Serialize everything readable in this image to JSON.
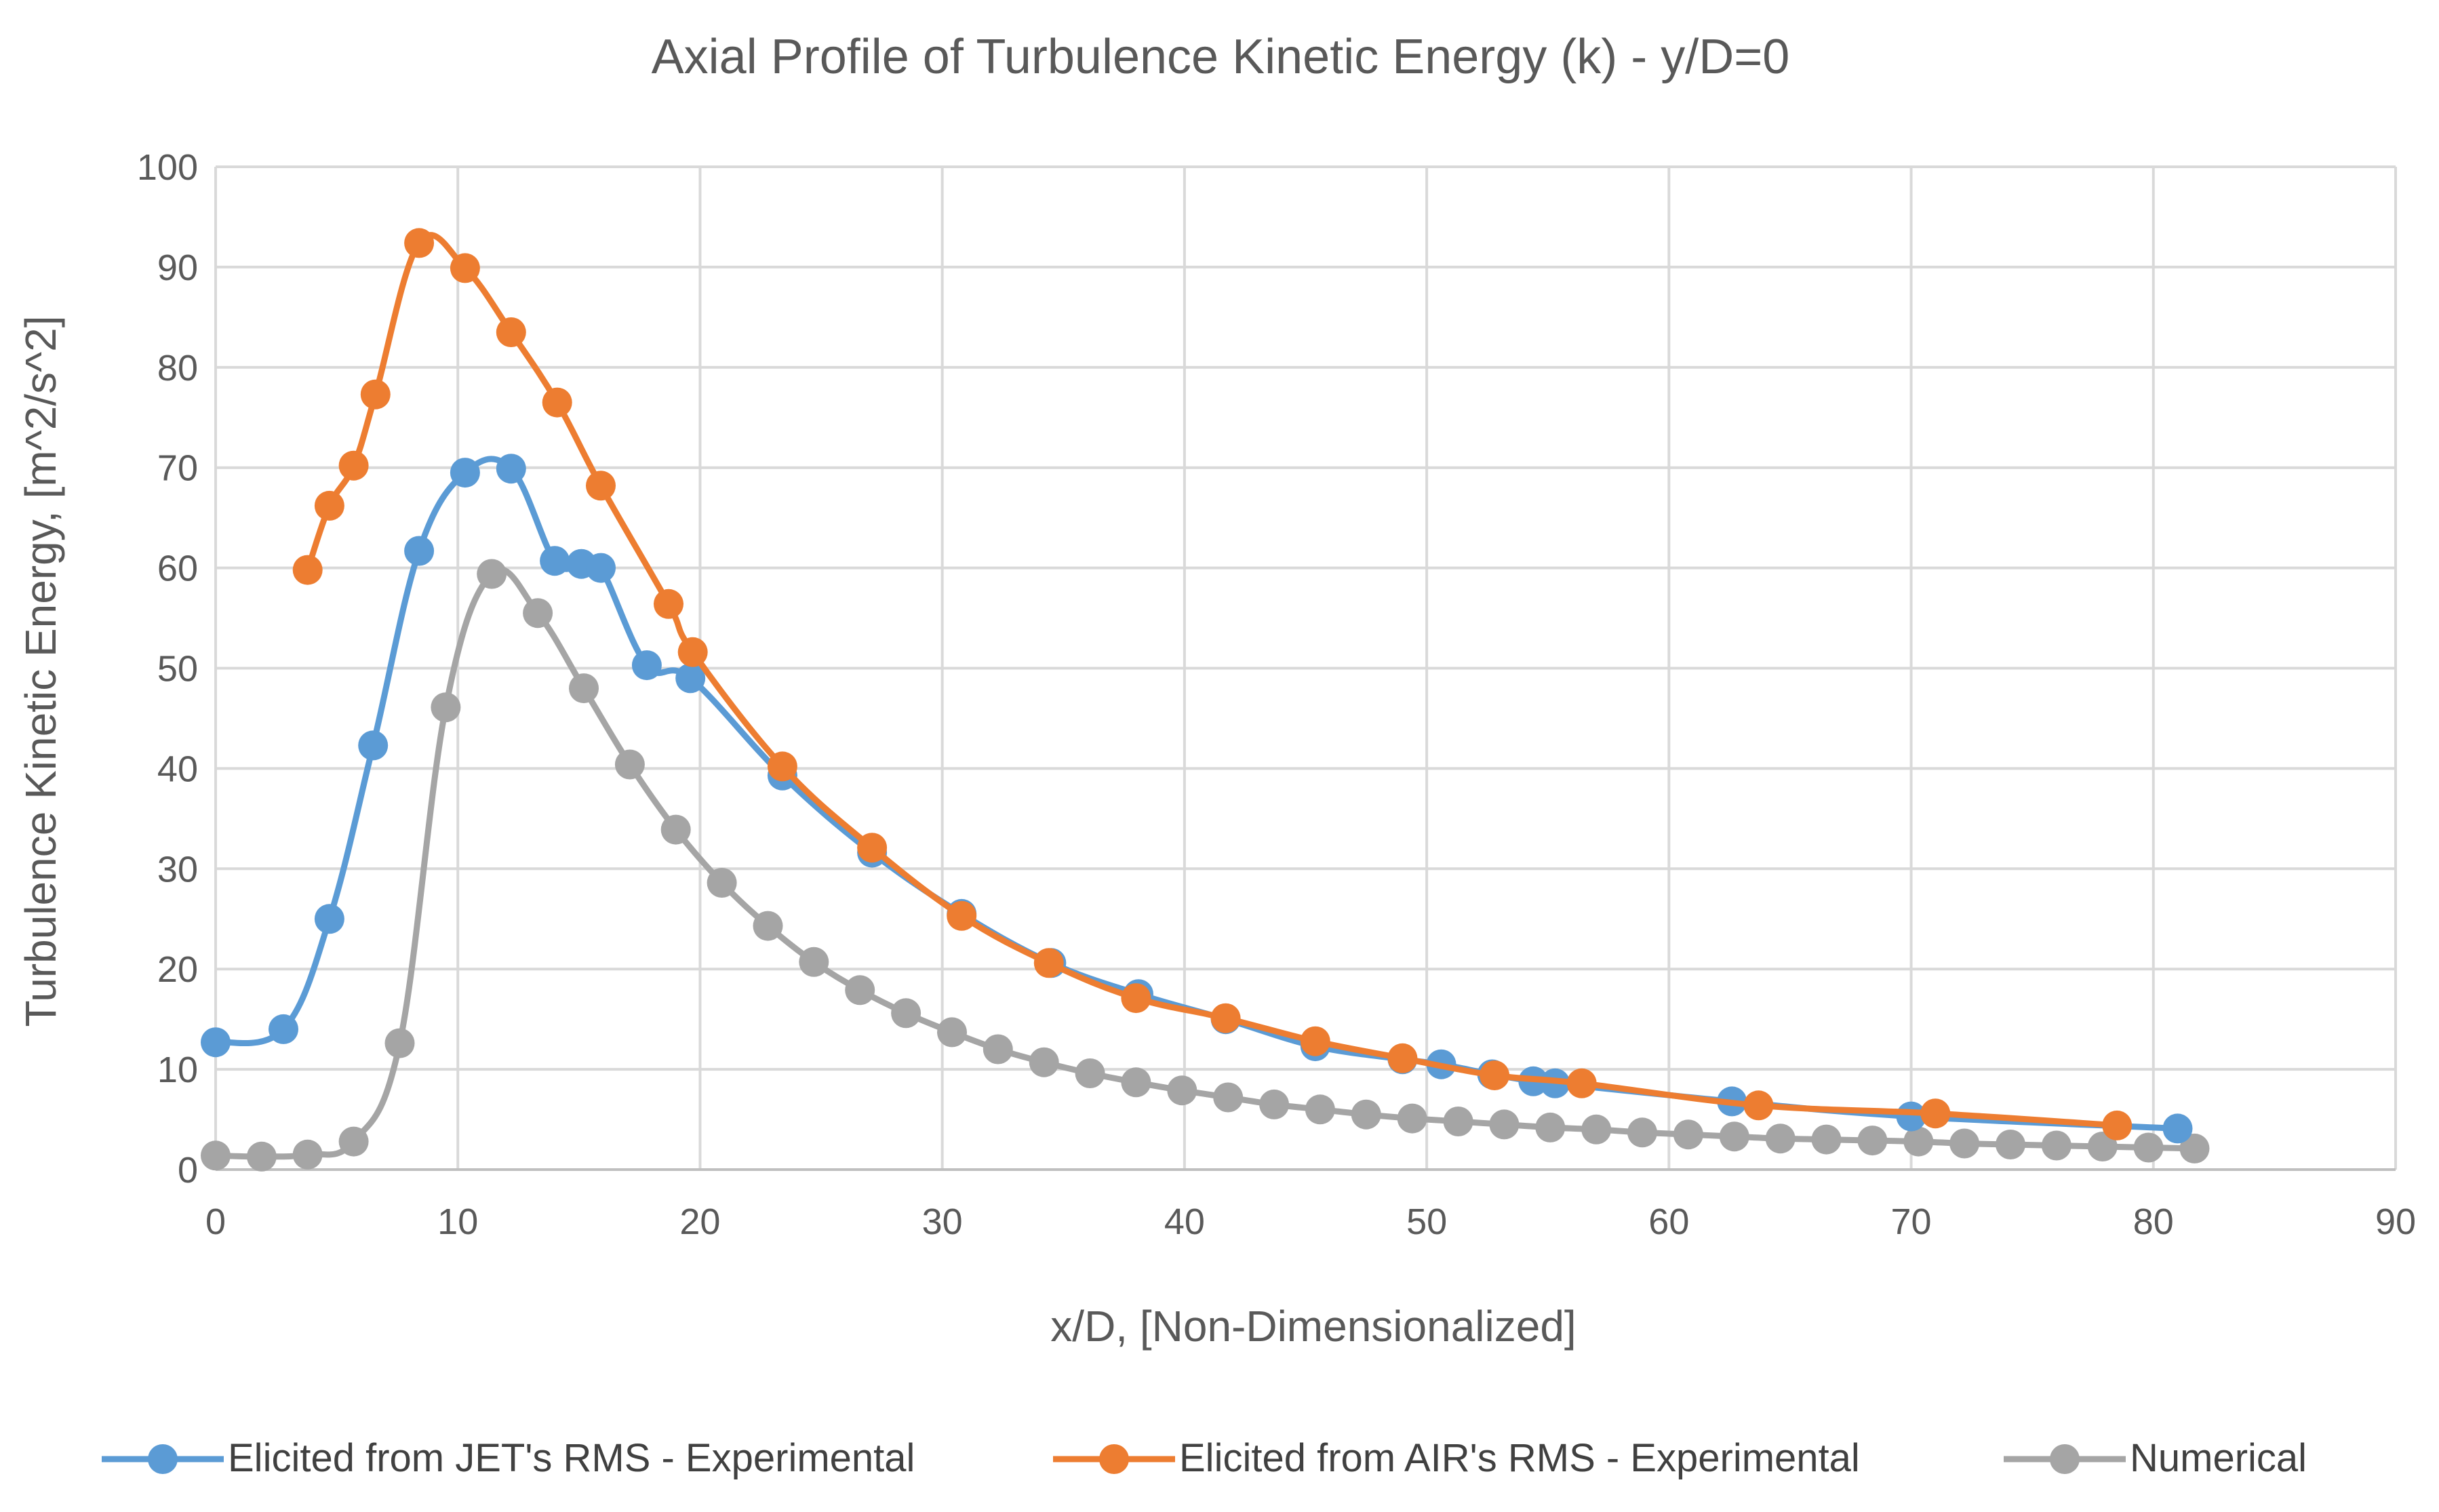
{
  "chart_data": {
    "type": "scatter",
    "title": "Axial Profile of Turbulence Kinetic Energy (k) - y/D=0",
    "xlabel": "x/D, [Non-Dimensionalized]",
    "ylabel": "Turbulence Kinetic Energy, [m^2/s^2]",
    "xlim": [
      0,
      90
    ],
    "ylim": [
      0,
      100
    ],
    "xticks": [
      0,
      10,
      20,
      30,
      40,
      50,
      60,
      70,
      80,
      90
    ],
    "yticks": [
      0,
      10,
      20,
      30,
      40,
      50,
      60,
      70,
      80,
      90,
      100
    ],
    "grid": true,
    "legend_position": "bottom",
    "series": [
      {
        "name": "Elicited from JET's RMS - Experimental",
        "color": "#5b9bd5",
        "x": [
          0,
          2.8,
          4.7,
          6.5,
          8.4,
          10.3,
          12.2,
          14.0,
          15.1,
          15.9,
          17.8,
          19.6,
          23.4,
          27.1,
          30.8,
          34.5,
          38.1,
          41.7,
          45.4,
          49.0,
          50.6,
          52.7,
          54.4,
          55.3,
          62.6,
          70.0,
          81.0
        ],
        "y": [
          12.7,
          14.0,
          25.0,
          42.3,
          61.7,
          69.5,
          69.9,
          60.7,
          60.4,
          60.0,
          50.3,
          49.0,
          39.3,
          31.6,
          25.5,
          20.6,
          17.5,
          15.0,
          12.3,
          11.0,
          10.5,
          9.5,
          8.8,
          8.6,
          6.8,
          5.3,
          4.1
        ]
      },
      {
        "name": "Elicited from AIR's RMS - Experimental",
        "color": "#ed7d31",
        "x": [
          3.8,
          4.7,
          5.7,
          6.6,
          8.4,
          10.3,
          12.2,
          14.1,
          15.9,
          18.7,
          19.7,
          23.4,
          27.1,
          30.8,
          34.4,
          38.0,
          41.7,
          45.4,
          49.0,
          52.8,
          56.4,
          63.7,
          71.0,
          78.5
        ],
        "y": [
          59.8,
          66.2,
          70.2,
          77.3,
          92.4,
          89.9,
          83.5,
          76.5,
          68.2,
          56.4,
          51.6,
          40.2,
          32.1,
          25.3,
          20.6,
          17.1,
          15.1,
          12.8,
          11.1,
          9.4,
          8.6,
          6.4,
          5.6,
          4.4
        ]
      },
      {
        "name": "Numerical",
        "color": "#a5a5a5",
        "x": [
          0,
          1.9,
          3.8,
          5.7,
          7.6,
          9.5,
          11.4,
          13.3,
          15.2,
          17.1,
          19.0,
          20.9,
          22.8,
          24.7,
          26.6,
          28.5,
          30.4,
          32.3,
          34.2,
          36.1,
          38.0,
          39.9,
          41.8,
          43.7,
          45.6,
          47.5,
          49.4,
          51.3,
          53.2,
          55.1,
          57.0,
          58.9,
          60.8,
          62.7,
          64.6,
          66.5,
          68.4,
          70.3,
          72.2,
          74.1,
          76.0,
          77.9,
          79.8,
          81.7
        ],
        "y": [
          1.4,
          1.3,
          1.5,
          2.8,
          12.6,
          46.1,
          59.4,
          55.5,
          48.0,
          40.4,
          33.9,
          28.6,
          24.3,
          20.7,
          17.9,
          15.6,
          13.7,
          12.0,
          10.7,
          9.6,
          8.7,
          7.9,
          7.2,
          6.5,
          6.0,
          5.5,
          5.1,
          4.8,
          4.5,
          4.2,
          4.0,
          3.7,
          3.5,
          3.3,
          3.1,
          3.0,
          2.9,
          2.8,
          2.6,
          2.5,
          2.4,
          2.3,
          2.2,
          2.1
        ]
      }
    ]
  }
}
